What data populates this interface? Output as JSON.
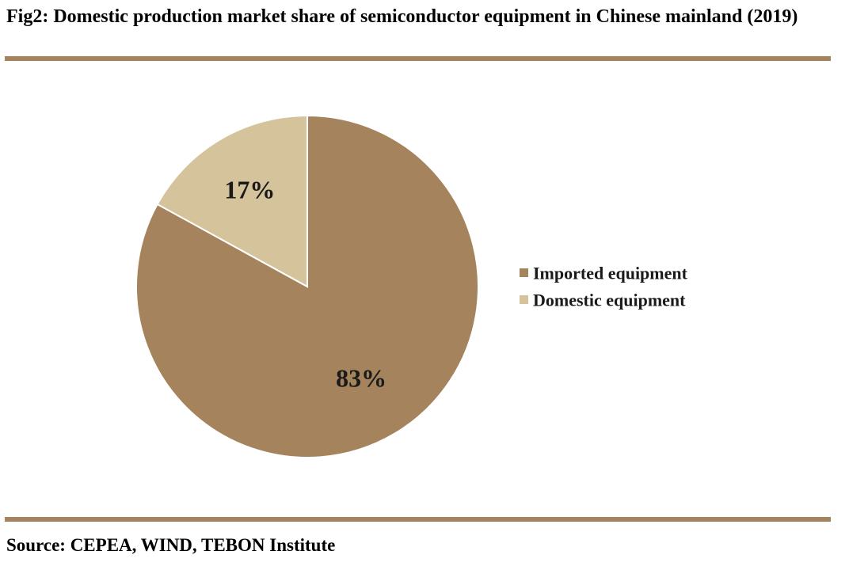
{
  "figure": {
    "title": "Fig2: Domestic production market share of semiconductor equipment in Chinese mainland (2019)",
    "source": "Source: CEPEA, WIND, TEBON Institute",
    "rule_color": "#a5835c"
  },
  "chart_data": {
    "type": "pie",
    "title": "Fig2: Domestic production market share of semiconductor equipment in Chinese mainland (2019)",
    "legend_position": "right",
    "slices": [
      {
        "label": "Imported equipment",
        "value": 83,
        "display": "83%",
        "color": "#a5835c"
      },
      {
        "label": "Domestic equipment",
        "value": 17,
        "display": "17%",
        "color": "#d5c39b"
      }
    ]
  }
}
